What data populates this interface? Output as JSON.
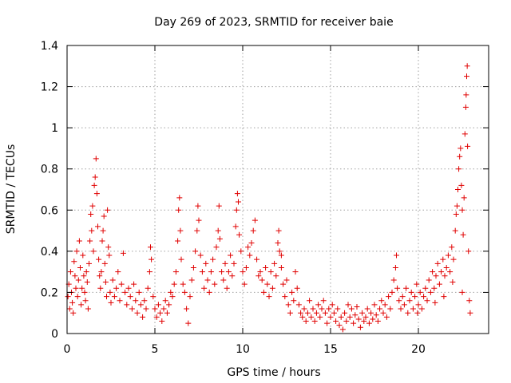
{
  "chart_data": {
    "type": "scatter",
    "title": "Day 269 of 2023, SRMTID for receiver baie",
    "xlabel": "GPS time / hours",
    "ylabel": "SRMTID / TECUs",
    "xlim": [
      0,
      24
    ],
    "ylim": [
      0,
      1.4
    ],
    "x_ticks": [
      0,
      5,
      10,
      15,
      20
    ],
    "x_tick_labels": [
      "0",
      "5",
      "10",
      "15",
      "20"
    ],
    "y_ticks": [
      0,
      0.2,
      0.4,
      0.6,
      0.8,
      1.0,
      1.2,
      1.4
    ],
    "y_tick_labels": [
      "0",
      "0.2",
      "0.4",
      "0.6",
      "0.8",
      "1",
      "1.2",
      "1.4"
    ],
    "grid": true,
    "marker": "+",
    "marker_color": "#e00000",
    "series": [
      {
        "name": "SRMTID",
        "points": [
          [
            0.05,
            0.18
          ],
          [
            0.1,
            0.24
          ],
          [
            0.15,
            0.12
          ],
          [
            0.2,
            0.3
          ],
          [
            0.25,
            0.2
          ],
          [
            0.3,
            0.15
          ],
          [
            0.35,
            0.1
          ],
          [
            0.4,
            0.35
          ],
          [
            0.45,
            0.28
          ],
          [
            0.5,
            0.22
          ],
          [
            0.55,
            0.4
          ],
          [
            0.6,
            0.18
          ],
          [
            0.65,
            0.26
          ],
          [
            0.7,
            0.45
          ],
          [
            0.75,
            0.32
          ],
          [
            0.8,
            0.14
          ],
          [
            0.85,
            0.22
          ],
          [
            0.9,
            0.38
          ],
          [
            0.95,
            0.28
          ],
          [
            1.0,
            0.2
          ],
          [
            1.05,
            0.16
          ],
          [
            1.1,
            0.3
          ],
          [
            1.15,
            0.25
          ],
          [
            1.2,
            0.12
          ],
          [
            1.25,
            0.34
          ],
          [
            1.3,
            0.45
          ],
          [
            1.35,
            0.58
          ],
          [
            1.4,
            0.5
          ],
          [
            1.45,
            0.62
          ],
          [
            1.5,
            0.4
          ],
          [
            1.55,
            0.72
          ],
          [
            1.6,
            0.76
          ],
          [
            1.65,
            0.85
          ],
          [
            1.7,
            0.68
          ],
          [
            1.75,
            0.52
          ],
          [
            1.8,
            0.36
          ],
          [
            1.85,
            0.28
          ],
          [
            1.9,
            0.22
          ],
          [
            1.95,
            0.3
          ],
          [
            2.0,
            0.45
          ],
          [
            2.05,
            0.5
          ],
          [
            2.1,
            0.57
          ],
          [
            2.15,
            0.34
          ],
          [
            2.2,
            0.25
          ],
          [
            2.25,
            0.18
          ],
          [
            2.3,
            0.6
          ],
          [
            2.35,
            0.42
          ],
          [
            2.4,
            0.38
          ],
          [
            2.45,
            0.2
          ],
          [
            2.5,
            0.15
          ],
          [
            2.6,
            0.26
          ],
          [
            2.7,
            0.18
          ],
          [
            2.8,
            0.22
          ],
          [
            2.9,
            0.3
          ],
          [
            3.0,
            0.16
          ],
          [
            3.1,
            0.24
          ],
          [
            3.2,
            0.39
          ],
          [
            3.3,
            0.2
          ],
          [
            3.4,
            0.14
          ],
          [
            3.5,
            0.22
          ],
          [
            3.6,
            0.18
          ],
          [
            3.7,
            0.12
          ],
          [
            3.8,
            0.24
          ],
          [
            3.9,
            0.16
          ],
          [
            4.0,
            0.1
          ],
          [
            4.1,
            0.2
          ],
          [
            4.2,
            0.14
          ],
          [
            4.3,
            0.08
          ],
          [
            4.4,
            0.16
          ],
          [
            4.5,
            0.12
          ],
          [
            4.6,
            0.22
          ],
          [
            4.7,
            0.3
          ],
          [
            4.75,
            0.42
          ],
          [
            4.8,
            0.36
          ],
          [
            4.9,
            0.18
          ],
          [
            5.0,
            0.12
          ],
          [
            5.1,
            0.08
          ],
          [
            5.2,
            0.14
          ],
          [
            5.3,
            0.1
          ],
          [
            5.4,
            0.06
          ],
          [
            5.5,
            0.12
          ],
          [
            5.6,
            0.16
          ],
          [
            5.7,
            0.1
          ],
          [
            5.8,
            0.14
          ],
          [
            5.9,
            0.2
          ],
          [
            6.0,
            0.18
          ],
          [
            6.1,
            0.24
          ],
          [
            6.2,
            0.3
          ],
          [
            6.3,
            0.45
          ],
          [
            6.35,
            0.6
          ],
          [
            6.4,
            0.66
          ],
          [
            6.45,
            0.5
          ],
          [
            6.5,
            0.36
          ],
          [
            6.6,
            0.24
          ],
          [
            6.7,
            0.2
          ],
          [
            6.8,
            0.12
          ],
          [
            6.9,
            0.05
          ],
          [
            7.0,
            0.18
          ],
          [
            7.1,
            0.26
          ],
          [
            7.2,
            0.32
          ],
          [
            7.3,
            0.4
          ],
          [
            7.4,
            0.5
          ],
          [
            7.45,
            0.62
          ],
          [
            7.5,
            0.55
          ],
          [
            7.6,
            0.38
          ],
          [
            7.7,
            0.3
          ],
          [
            7.8,
            0.22
          ],
          [
            7.9,
            0.34
          ],
          [
            8.0,
            0.26
          ],
          [
            8.1,
            0.2
          ],
          [
            8.2,
            0.3
          ],
          [
            8.3,
            0.36
          ],
          [
            8.4,
            0.24
          ],
          [
            8.5,
            0.42
          ],
          [
            8.6,
            0.5
          ],
          [
            8.65,
            0.62
          ],
          [
            8.7,
            0.46
          ],
          [
            8.8,
            0.3
          ],
          [
            8.9,
            0.26
          ],
          [
            9.0,
            0.34
          ],
          [
            9.1,
            0.22
          ],
          [
            9.2,
            0.3
          ],
          [
            9.3,
            0.38
          ],
          [
            9.4,
            0.28
          ],
          [
            9.5,
            0.34
          ],
          [
            9.6,
            0.52
          ],
          [
            9.65,
            0.6
          ],
          [
            9.7,
            0.68
          ],
          [
            9.75,
            0.64
          ],
          [
            9.8,
            0.48
          ],
          [
            9.9,
            0.4
          ],
          [
            10.0,
            0.3
          ],
          [
            10.1,
            0.24
          ],
          [
            10.2,
            0.32
          ],
          [
            10.3,
            0.42
          ],
          [
            10.4,
            0.38
          ],
          [
            10.5,
            0.44
          ],
          [
            10.6,
            0.5
          ],
          [
            10.7,
            0.55
          ],
          [
            10.8,
            0.36
          ],
          [
            10.9,
            0.28
          ],
          [
            11.0,
            0.3
          ],
          [
            11.1,
            0.26
          ],
          [
            11.2,
            0.2
          ],
          [
            11.3,
            0.32
          ],
          [
            11.4,
            0.24
          ],
          [
            11.5,
            0.18
          ],
          [
            11.6,
            0.3
          ],
          [
            11.7,
            0.22
          ],
          [
            11.8,
            0.34
          ],
          [
            11.9,
            0.28
          ],
          [
            12.0,
            0.44
          ],
          [
            12.05,
            0.5
          ],
          [
            12.1,
            0.4
          ],
          [
            12.2,
            0.32
          ],
          [
            12.3,
            0.24
          ],
          [
            12.4,
            0.18
          ],
          [
            12.5,
            0.26
          ],
          [
            12.6,
            0.14
          ],
          [
            12.7,
            0.1
          ],
          [
            12.8,
            0.2
          ],
          [
            12.9,
            0.16
          ],
          [
            13.0,
            0.3
          ],
          [
            13.1,
            0.22
          ],
          [
            13.2,
            0.14
          ],
          [
            13.3,
            0.1
          ],
          [
            13.4,
            0.08
          ],
          [
            13.5,
            0.12
          ],
          [
            13.6,
            0.06
          ],
          [
            13.7,
            0.1
          ],
          [
            13.8,
            0.16
          ],
          [
            13.9,
            0.08
          ],
          [
            14.0,
            0.12
          ],
          [
            14.1,
            0.06
          ],
          [
            14.2,
            0.1
          ],
          [
            14.3,
            0.14
          ],
          [
            14.4,
            0.08
          ],
          [
            14.5,
            0.12
          ],
          [
            14.6,
            0.16
          ],
          [
            14.7,
            0.1
          ],
          [
            14.8,
            0.05
          ],
          [
            14.9,
            0.12
          ],
          [
            15.0,
            0.08
          ],
          [
            15.1,
            0.14
          ],
          [
            15.2,
            0.1
          ],
          [
            15.3,
            0.06
          ],
          [
            15.4,
            0.12
          ],
          [
            15.5,
            0.04
          ],
          [
            15.6,
            0.08
          ],
          [
            15.7,
            0.02
          ],
          [
            15.8,
            0.1
          ],
          [
            15.9,
            0.06
          ],
          [
            16.0,
            0.14
          ],
          [
            16.1,
            0.08
          ],
          [
            16.2,
            0.12
          ],
          [
            16.3,
            0.05
          ],
          [
            16.4,
            0.09
          ],
          [
            16.5,
            0.13
          ],
          [
            16.6,
            0.07
          ],
          [
            16.7,
            0.03
          ],
          [
            16.8,
            0.1
          ],
          [
            16.9,
            0.06
          ],
          [
            17.0,
            0.08
          ],
          [
            17.1,
            0.12
          ],
          [
            17.2,
            0.05
          ],
          [
            17.3,
            0.1
          ],
          [
            17.4,
            0.07
          ],
          [
            17.5,
            0.14
          ],
          [
            17.6,
            0.09
          ],
          [
            17.7,
            0.06
          ],
          [
            17.8,
            0.12
          ],
          [
            17.9,
            0.16
          ],
          [
            18.0,
            0.1
          ],
          [
            18.1,
            0.14
          ],
          [
            18.2,
            0.08
          ],
          [
            18.3,
            0.18
          ],
          [
            18.4,
            0.12
          ],
          [
            18.5,
            0.2
          ],
          [
            18.6,
            0.26
          ],
          [
            18.7,
            0.32
          ],
          [
            18.75,
            0.38
          ],
          [
            18.8,
            0.22
          ],
          [
            18.9,
            0.16
          ],
          [
            19.0,
            0.12
          ],
          [
            19.1,
            0.18
          ],
          [
            19.2,
            0.14
          ],
          [
            19.3,
            0.22
          ],
          [
            19.4,
            0.1
          ],
          [
            19.5,
            0.16
          ],
          [
            19.6,
            0.2
          ],
          [
            19.7,
            0.12
          ],
          [
            19.8,
            0.18
          ],
          [
            19.9,
            0.24
          ],
          [
            20.0,
            0.14
          ],
          [
            20.1,
            0.2
          ],
          [
            20.2,
            0.12
          ],
          [
            20.3,
            0.18
          ],
          [
            20.4,
            0.22
          ],
          [
            20.5,
            0.16
          ],
          [
            20.6,
            0.26
          ],
          [
            20.7,
            0.2
          ],
          [
            20.8,
            0.3
          ],
          [
            20.9,
            0.22
          ],
          [
            21.0,
            0.28
          ],
          [
            21.1,
            0.34
          ],
          [
            21.2,
            0.24
          ],
          [
            21.3,
            0.3
          ],
          [
            21.4,
            0.36
          ],
          [
            21.5,
            0.28
          ],
          [
            21.6,
            0.32
          ],
          [
            21.7,
            0.38
          ],
          [
            21.8,
            0.3
          ],
          [
            21.9,
            0.42
          ],
          [
            22.0,
            0.36
          ],
          [
            22.1,
            0.5
          ],
          [
            22.15,
            0.58
          ],
          [
            22.2,
            0.62
          ],
          [
            22.25,
            0.7
          ],
          [
            22.3,
            0.8
          ],
          [
            22.35,
            0.86
          ],
          [
            22.4,
            0.9
          ],
          [
            22.45,
            0.72
          ],
          [
            22.5,
            0.6
          ],
          [
            22.55,
            0.48
          ],
          [
            22.6,
            0.66
          ],
          [
            22.65,
            0.97
          ],
          [
            22.7,
            1.1
          ],
          [
            22.72,
            1.16
          ],
          [
            22.75,
            1.25
          ],
          [
            22.78,
            1.3
          ],
          [
            22.8,
            0.91
          ],
          [
            22.85,
            0.4
          ],
          [
            22.9,
            0.16
          ],
          [
            22.95,
            0.1
          ],
          [
            22.5,
            0.2
          ],
          [
            21.95,
            0.25
          ],
          [
            21.45,
            0.18
          ],
          [
            20.95,
            0.15
          ],
          [
            19.95,
            0.1
          ],
          [
            12.2,
            0.38
          ]
        ]
      }
    ]
  }
}
